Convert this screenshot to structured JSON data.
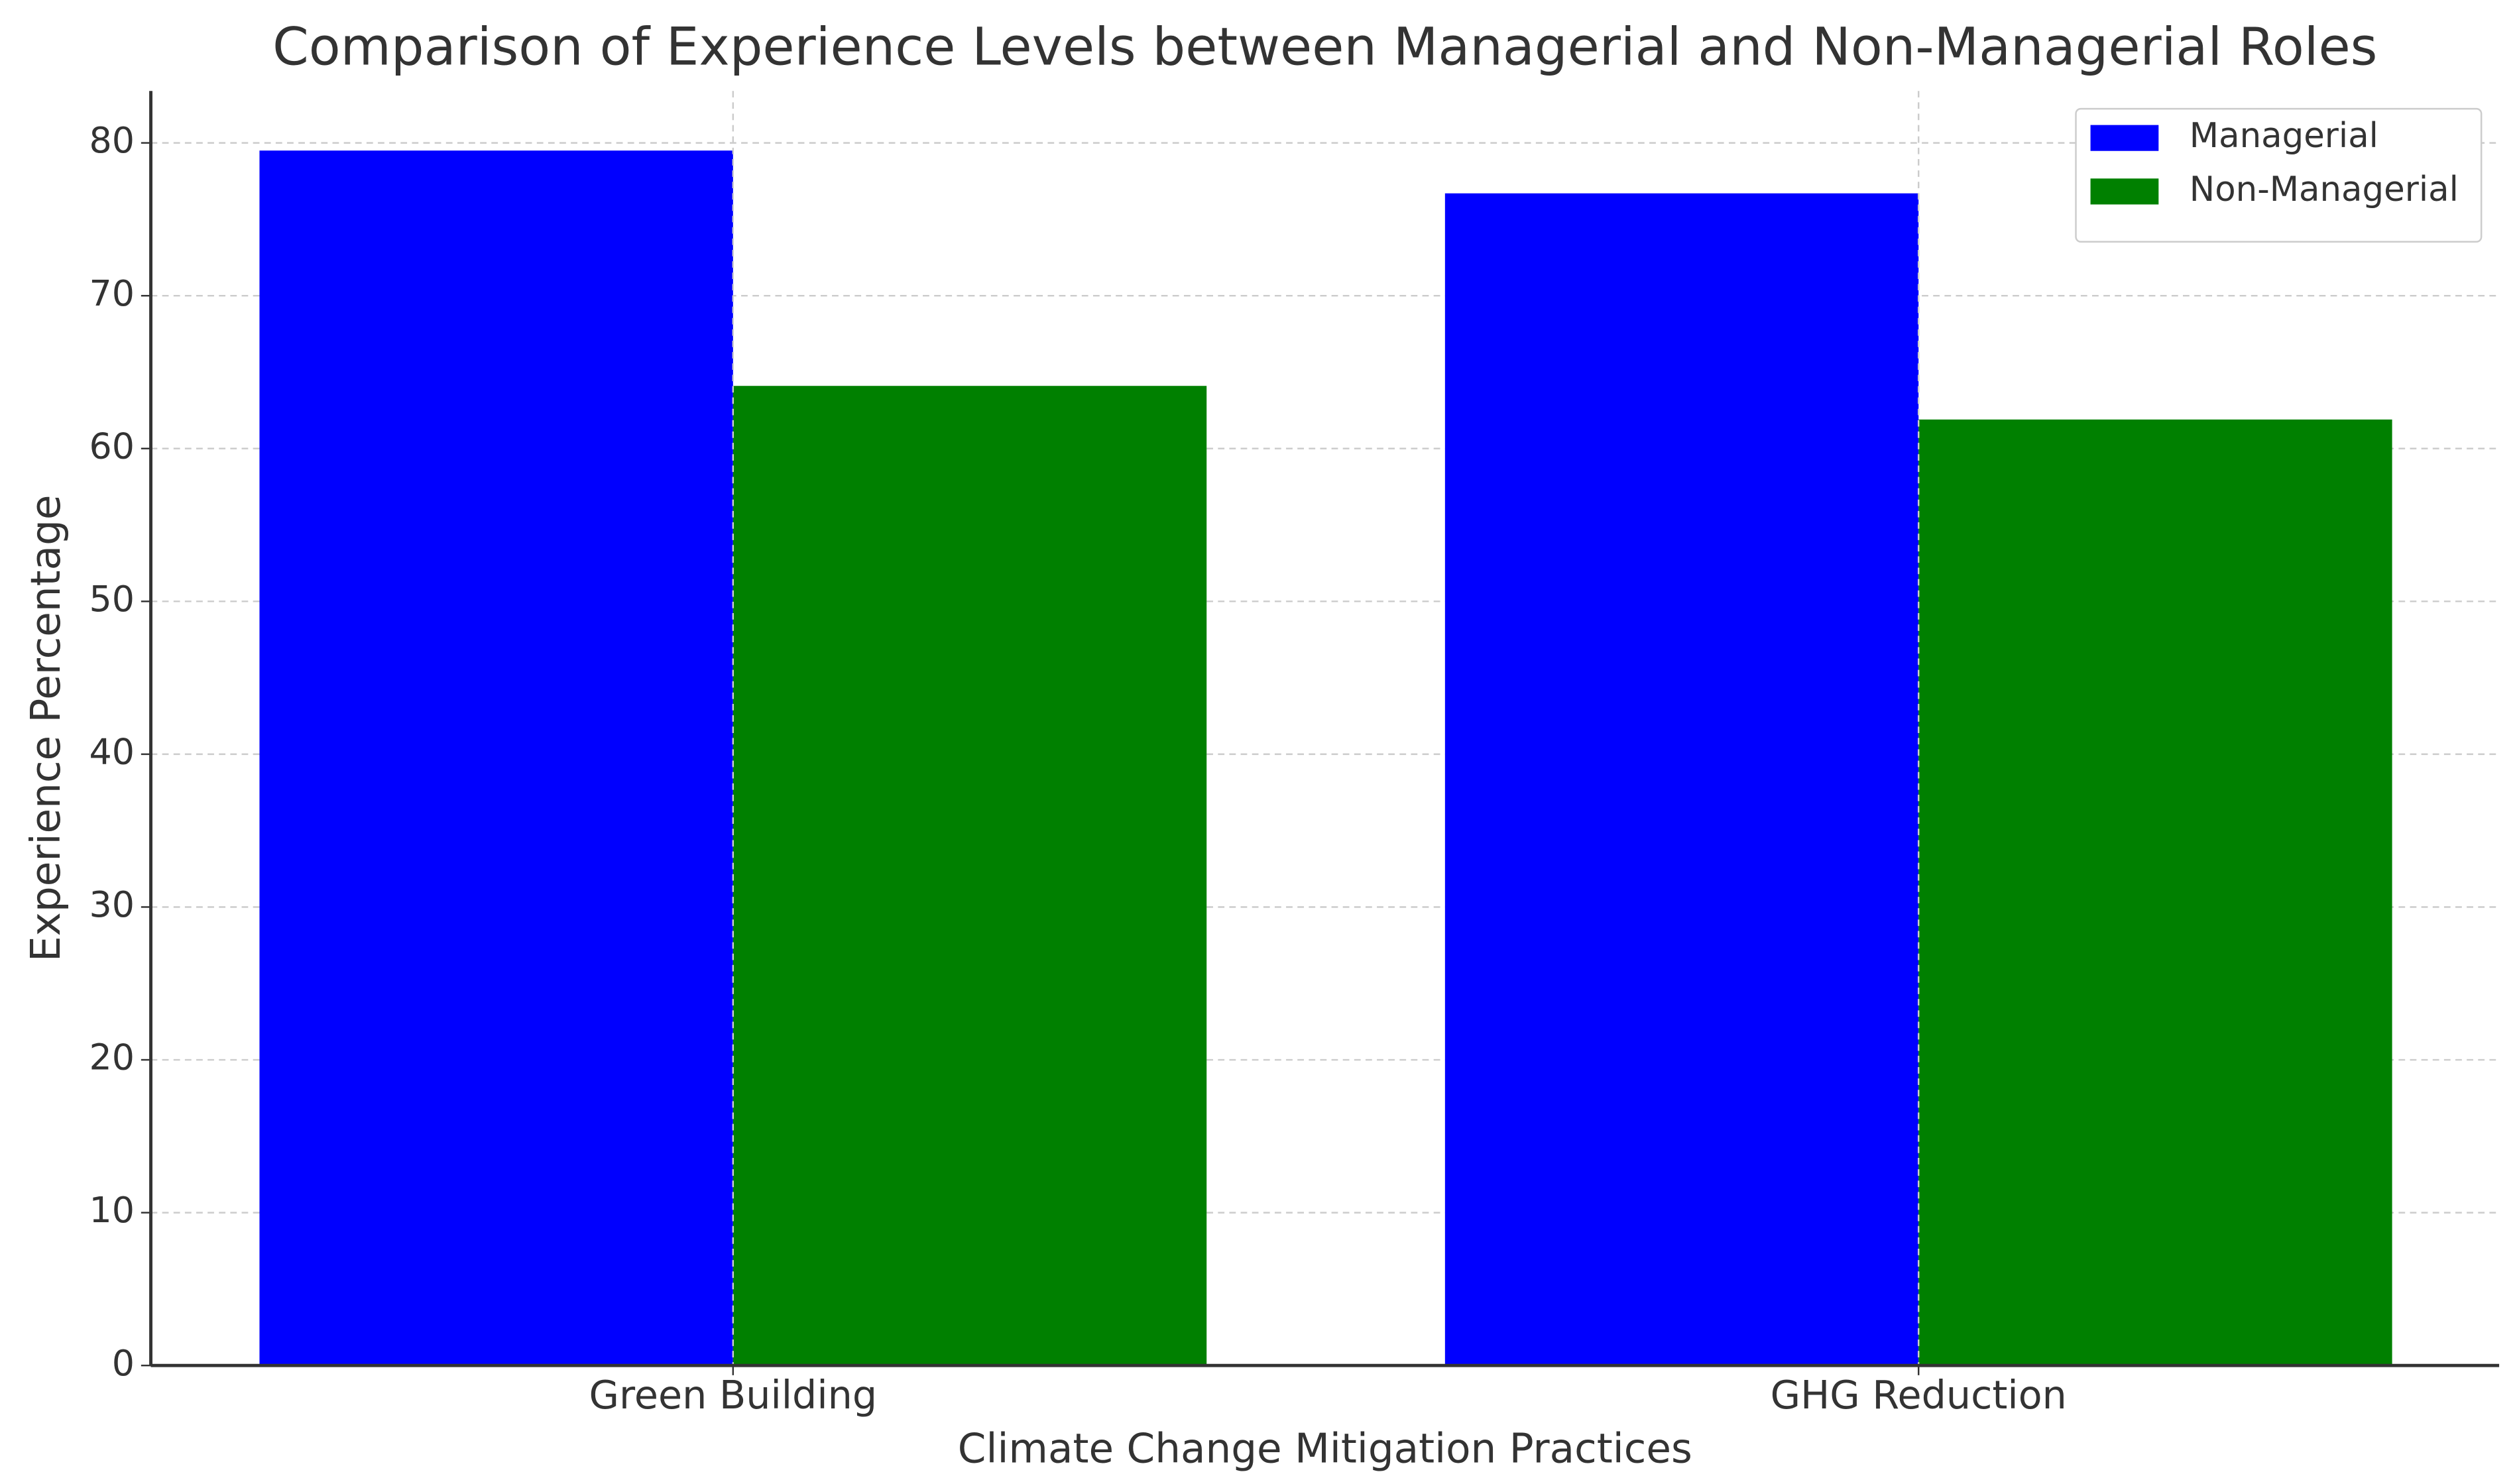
{
  "chart_data": {
    "type": "bar",
    "title": "Comparison of Experience Levels between Managerial and Non-Managerial Roles",
    "x_label": "Climate Change Mitigation Practices",
    "y_label": "Experience Percentage",
    "categories": [
      "Green Building",
      "GHG Reduction"
    ],
    "series": [
      {
        "name": "Managerial",
        "color": "#0000ff",
        "values": [
          79.5,
          76.7
        ]
      },
      {
        "name": "Non-Managerial",
        "color": "#008000",
        "values": [
          64.1,
          61.9
        ]
      }
    ],
    "ylim": [
      0,
      83.4
    ],
    "yticks": [
      0,
      10,
      20,
      30,
      40,
      50,
      60,
      70,
      80
    ],
    "grid": true,
    "legend": "upper right"
  }
}
